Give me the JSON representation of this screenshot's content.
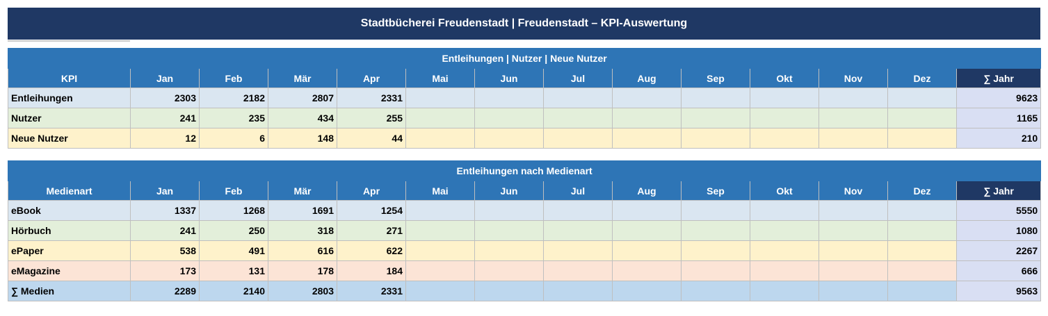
{
  "title": "Stadtbücherei Freudenstadt  |  Freudenstadt  –  KPI-Auswertung",
  "months": [
    "Jan",
    "Feb",
    "Mär",
    "Apr",
    "Mai",
    "Jun",
    "Jul",
    "Aug",
    "Sep",
    "Okt",
    "Nov",
    "Dez"
  ],
  "sum_label": "∑ Jahr",
  "table1": {
    "section_title": "Entleihungen | Nutzer | Neue Nutzer",
    "first_col_header": "KPI",
    "rows": [
      {
        "label": "Entleihungen",
        "values": [
          "2303",
          "2182",
          "2807",
          "2331",
          "",
          "",
          "",
          "",
          "",
          "",
          "",
          ""
        ],
        "sum": "9623"
      },
      {
        "label": "Nutzer",
        "values": [
          "241",
          "235",
          "434",
          "255",
          "",
          "",
          "",
          "",
          "",
          "",
          "",
          ""
        ],
        "sum": "1165"
      },
      {
        "label": "Neue Nutzer",
        "values": [
          "12",
          "6",
          "148",
          "44",
          "",
          "",
          "",
          "",
          "",
          "",
          "",
          ""
        ],
        "sum": "210"
      }
    ]
  },
  "table2": {
    "section_title": "Entleihungen nach Medienart",
    "first_col_header": "Medienart",
    "rows": [
      {
        "label": "eBook",
        "values": [
          "1337",
          "1268",
          "1691",
          "1254",
          "",
          "",
          "",
          "",
          "",
          "",
          "",
          ""
        ],
        "sum": "5550"
      },
      {
        "label": "Hörbuch",
        "values": [
          "241",
          "250",
          "318",
          "271",
          "",
          "",
          "",
          "",
          "",
          "",
          "",
          ""
        ],
        "sum": "1080"
      },
      {
        "label": "ePaper",
        "values": [
          "538",
          "491",
          "616",
          "622",
          "",
          "",
          "",
          "",
          "",
          "",
          "",
          ""
        ],
        "sum": "2267"
      },
      {
        "label": "eMagazine",
        "values": [
          "173",
          "131",
          "178",
          "184",
          "",
          "",
          "",
          "",
          "",
          "",
          "",
          ""
        ],
        "sum": "666"
      },
      {
        "label": "∑ Medien",
        "values": [
          "2289",
          "2140",
          "2803",
          "2331",
          "",
          "",
          "",
          "",
          "",
          "",
          "",
          ""
        ],
        "sum": "9563"
      }
    ]
  }
}
